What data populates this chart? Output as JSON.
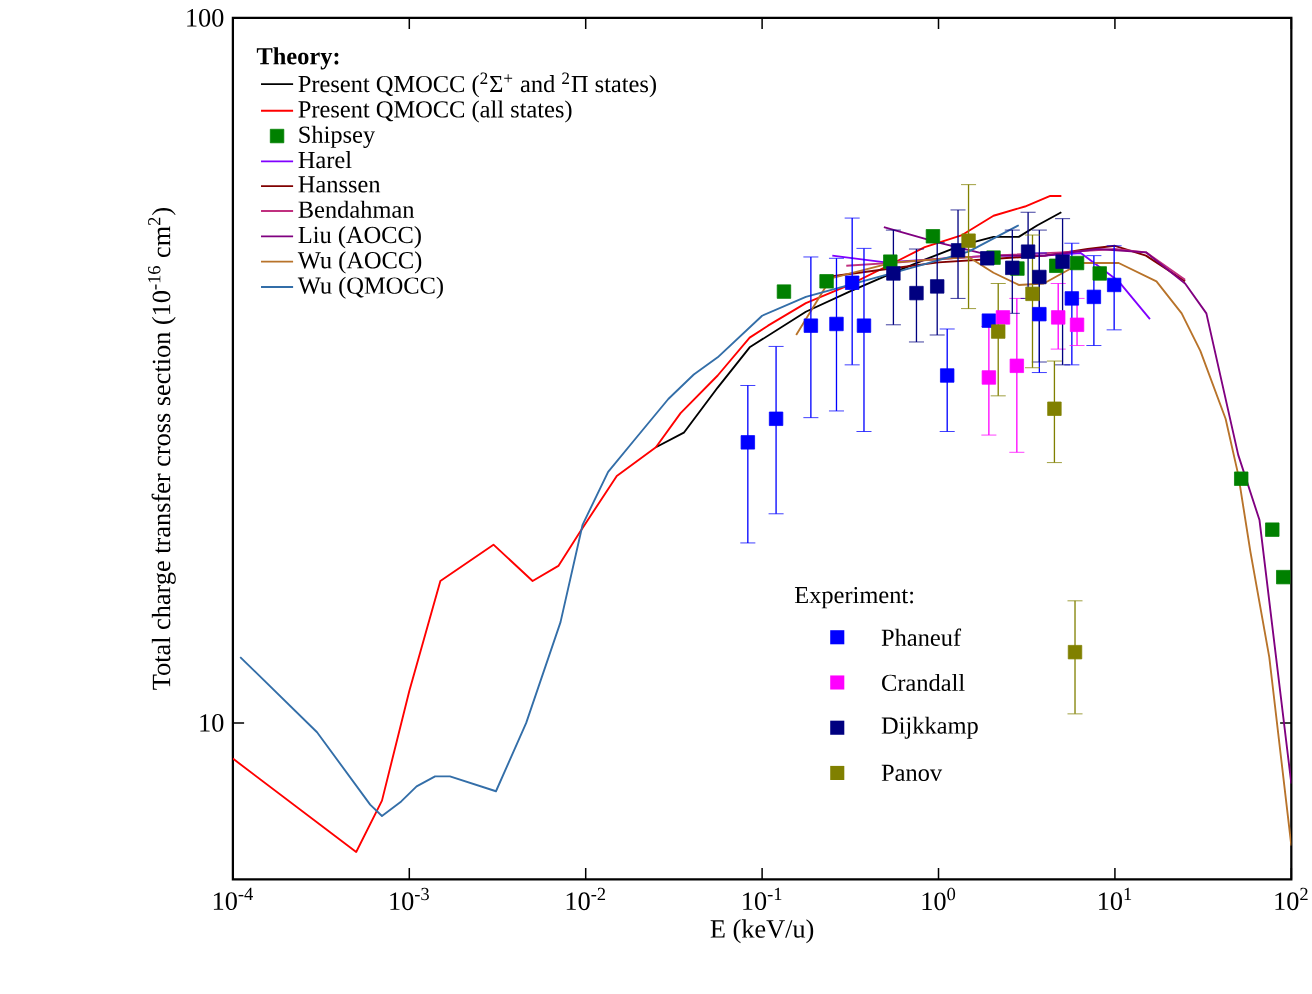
{
  "chart_data": {
    "type": "line",
    "xlabel": "E (keV/u)",
    "ylabel": "Total charge transfer cross section (10$^{-16}$ cm$^{2}$)",
    "legend_title": "Theory:",
    "annotations": [
      "Experiment:"
    ],
    "log": "xy",
    "legend": "top left",
    "xlim": [
      0.0001,
      100
    ],
    "ylim": [
      6,
      100
    ],
    "xticks": [
      {
        "value": 0.0001,
        "label": "10$^{-4}$"
      },
      {
        "value": 0.001,
        "label": "10$^{-3}$"
      },
      {
        "value": 0.01,
        "label": "10$^{-2}$"
      },
      {
        "value": 0.1,
        "label": "10$^{-1}$"
      },
      {
        "value": 1,
        "label": "10$^{0}$"
      },
      {
        "value": 10,
        "label": "10$^{1}$"
      },
      {
        "value": 100,
        "label": "10$^{2}$"
      }
    ],
    "yticks": [
      10,
      100
    ],
    "series": [
      {
        "name": "Present QMOCC ($^{2}$Σ$^{+}$ and $^{2}$Π states)",
        "color": "#000000",
        "x": [
          0.025,
          0.036,
          0.056,
          0.085,
          0.177,
          0.313,
          0.555,
          0.836,
          1.36,
          2.05,
          2.85,
          3.64,
          4.97
        ],
        "values": [
          24.6,
          25.8,
          29.9,
          34.1,
          38.3,
          40.9,
          43.5,
          45.4,
          47.6,
          48.9,
          48.9,
          50.8,
          53
        ]
      },
      {
        "name": "Present QMOCC (all states)",
        "color": "#ff0000",
        "x": [
          0.0001,
          0.0005,
          0.0007,
          0.001,
          0.0015,
          0.003,
          0.005,
          0.007,
          0.0092,
          0.015,
          0.025,
          0.0345,
          0.056,
          0.085,
          0.108,
          0.177,
          0.313,
          0.555,
          0.836,
          1.36,
          2.05,
          3.09,
          4.3,
          4.97
        ],
        "values": [
          8.9,
          6.56,
          7.76,
          11.1,
          15.9,
          17.9,
          15.9,
          16.7,
          18.6,
          22.4,
          24.6,
          27.5,
          31.1,
          35.2,
          36.6,
          39.4,
          41.8,
          44.9,
          47.3,
          49.2,
          52.4,
          54,
          55.9,
          55.9
        ]
      },
      {
        "name": "Shipsey",
        "type": "scatter",
        "marker": "square",
        "color": "#008000",
        "x": [
          0.133,
          0.232,
          0.533,
          0.93,
          2.05,
          2.8,
          4.65,
          6.1,
          8.2,
          52,
          78,
          90
        ],
        "values": [
          40.9,
          42.3,
          45.1,
          49,
          45.7,
          44.1,
          44.5,
          44.9,
          43.4,
          22.2,
          18.8,
          16.1
        ]
      },
      {
        "name": "Harel",
        "color": "#8000ff",
        "x": [
          0.25,
          0.5,
          1,
          2,
          4,
          6.4,
          10.5,
          15.8
        ],
        "values": [
          46,
          45,
          45.5,
          46,
          46,
          46.4,
          42.3,
          37.4
        ]
      },
      {
        "name": "Hanssen",
        "color": "#800000",
        "x": [
          0.25,
          0.5,
          1,
          2,
          4,
          7,
          10,
          15,
          25
        ],
        "values": [
          43,
          44,
          45,
          45.5,
          46,
          47,
          47.5,
          46,
          42.3
        ]
      },
      {
        "name": "Bendahman",
        "color": "#c0307f",
        "x": [
          0.3,
          0.6,
          1,
          2,
          5,
          10,
          15,
          25
        ],
        "values": [
          44.5,
          45,
          45.5,
          46,
          46.5,
          47,
          46.5,
          42.5
        ]
      },
      {
        "name": "Liu (AOCC)",
        "color": "#800080",
        "x": [
          0.49,
          1,
          2,
          4,
          8,
          15,
          25,
          33,
          50,
          66,
          100
        ],
        "values": [
          50.5,
          48,
          46,
          46,
          47,
          46.5,
          42,
          38.1,
          24,
          19.4,
          8.2
        ]
      },
      {
        "name": "Wu (AOCC)",
        "color": "#b8732a",
        "x": [
          0.156,
          0.245,
          0.555,
          1.48,
          2.05,
          2.85,
          3.95,
          6.4,
          10.5,
          17.2,
          23.9,
          30.5,
          42.4,
          50,
          58.6,
          75,
          100
        ],
        "values": [
          35.5,
          42.7,
          45,
          45.8,
          43.5,
          41.8,
          42,
          44.9,
          44.9,
          42.3,
          38.1,
          33.7,
          27,
          22.5,
          17.5,
          12.4,
          6.7
        ]
      },
      {
        "name": "Wu (QMOCC)",
        "color": "#336ea8",
        "x": [
          0.00011,
          0.0003,
          0.0006,
          0.0007,
          0.0009,
          0.0011,
          0.0014,
          0.0017,
          0.0031,
          0.0046,
          0.0072,
          0.0096,
          0.0134,
          0.0194,
          0.0294,
          0.041,
          0.056,
          0.1,
          0.177,
          0.37,
          0.77,
          1.48,
          2.85
        ],
        "values": [
          12.4,
          9.7,
          7.66,
          7.38,
          7.74,
          8.13,
          8.4,
          8.4,
          8.0,
          10.0,
          13.9,
          19.1,
          22.7,
          25.4,
          28.8,
          31.2,
          33,
          37.8,
          40.2,
          42.3,
          44.5,
          46.6,
          50.8
        ]
      },
      {
        "name": "Phaneuf",
        "type": "scatter",
        "marker": "square",
        "color": "#0000ff",
        "x": [
          0.083,
          0.12,
          0.189,
          0.264,
          0.324,
          0.378,
          1.12,
          1.93,
          3.73,
          5.7,
          7.6,
          9.9
        ],
        "values": [
          25,
          27,
          36.6,
          36.8,
          42.1,
          36.6,
          31.1,
          37.2,
          38,
          40,
          40.2,
          41.8
        ],
        "errors": [
          [
            18,
            30.1
          ],
          [
            19.8,
            34.2
          ],
          [
            27.1,
            45.8
          ],
          [
            27.7,
            45.6
          ],
          [
            32.2,
            52
          ],
          [
            25.9,
            47.1
          ],
          [
            25.9,
            36.2
          ],
          null,
          [
            31.4,
            46.4
          ],
          [
            32.2,
            47.9
          ],
          [
            34.3,
            46
          ],
          [
            36.1,
            47.5
          ]
        ]
      },
      {
        "name": "Crandall",
        "type": "scatter",
        "marker": "square",
        "color": "#ff00ff",
        "x": [
          1.93,
          2.32,
          2.78,
          4.77,
          6.1
        ],
        "values": [
          30.9,
          37.6,
          32.1,
          37.6,
          36.7
        ],
        "errors": [
          [
            25.6,
            36.5
          ],
          null,
          [
            24.2,
            40
          ],
          [
            33.9,
            42
          ],
          [
            34.3,
            40
          ]
        ]
      },
      {
        "name": "Dijkkamp",
        "type": "scatter",
        "marker": "square",
        "color": "#000080",
        "x": [
          0.555,
          0.75,
          0.983,
          1.29,
          1.89,
          2.62,
          3.22,
          3.73,
          5.05
        ],
        "values": [
          43.4,
          40.7,
          41.6,
          46.8,
          45.6,
          44.2,
          46.6,
          42.9,
          45.1
        ],
        "errors": [
          [
            36.7,
            50
          ],
          [
            34.7,
            47
          ],
          [
            35.5,
            48
          ],
          [
            40,
            53.4
          ],
          null,
          [
            38.1,
            50
          ],
          [
            40,
            53
          ],
          [
            32.5,
            50
          ],
          [
            32.2,
            51.9
          ]
        ]
      },
      {
        "name": "Panov",
        "type": "scatter",
        "marker": "square",
        "color": "#808000",
        "x": [
          1.48,
          2.18,
          3.41,
          4.54,
          5.94
        ],
        "values": [
          48.3,
          35.9,
          40.6,
          27.9,
          12.6
        ],
        "errors": [
          [
            38.7,
            58
          ],
          [
            29.1,
            42
          ],
          [
            31.9,
            49.2
          ],
          [
            23.4,
            32.6
          ],
          [
            10.3,
            14.9
          ]
        ]
      }
    ]
  }
}
